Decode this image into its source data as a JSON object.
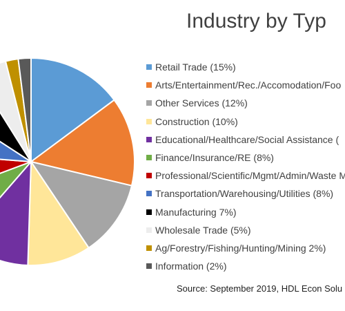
{
  "chart_data": {
    "type": "pie",
    "title": "Industry by Typ",
    "source": "Source: September 2019, HDL Econ Solu",
    "slices": [
      {
        "label": "Retail Trade (15%)",
        "value": 15,
        "color": "#5b9bd5"
      },
      {
        "label": "Arts/Entertainment/Rec./Accomodation/Foo",
        "value": 14,
        "color": "#ed7d31"
      },
      {
        "label": "Other Services (12%)",
        "value": 12,
        "color": "#a5a5a5"
      },
      {
        "label": "Construction (10%)",
        "value": 10,
        "color": "#ffe699"
      },
      {
        "label": "Educational/Healthcare/Social Assistance (",
        "value": 11,
        "color": "#7030a0"
      },
      {
        "label": "Finance/Insurance/RE (8%)",
        "value": 8,
        "color": "#70ad47"
      },
      {
        "label": "Professional/Scientific/Mgmt/Admin/Waste M",
        "value": 7,
        "color": "#c00000"
      },
      {
        "label": "Transportation/Warehousing/Utilities (8%)",
        "value": 8,
        "color": "#4472c4"
      },
      {
        "label": "Manufacturing 7%)",
        "value": 7,
        "color": "#000000"
      },
      {
        "label": "Wholesale Trade (5%)",
        "value": 5,
        "color": "#ededed"
      },
      {
        "label": "Ag/Forestry/Fishing/Hunting/Mining 2%)",
        "value": 2,
        "color": "#bf9000"
      },
      {
        "label": "Information (2%)",
        "value": 2,
        "color": "#595959"
      }
    ]
  }
}
